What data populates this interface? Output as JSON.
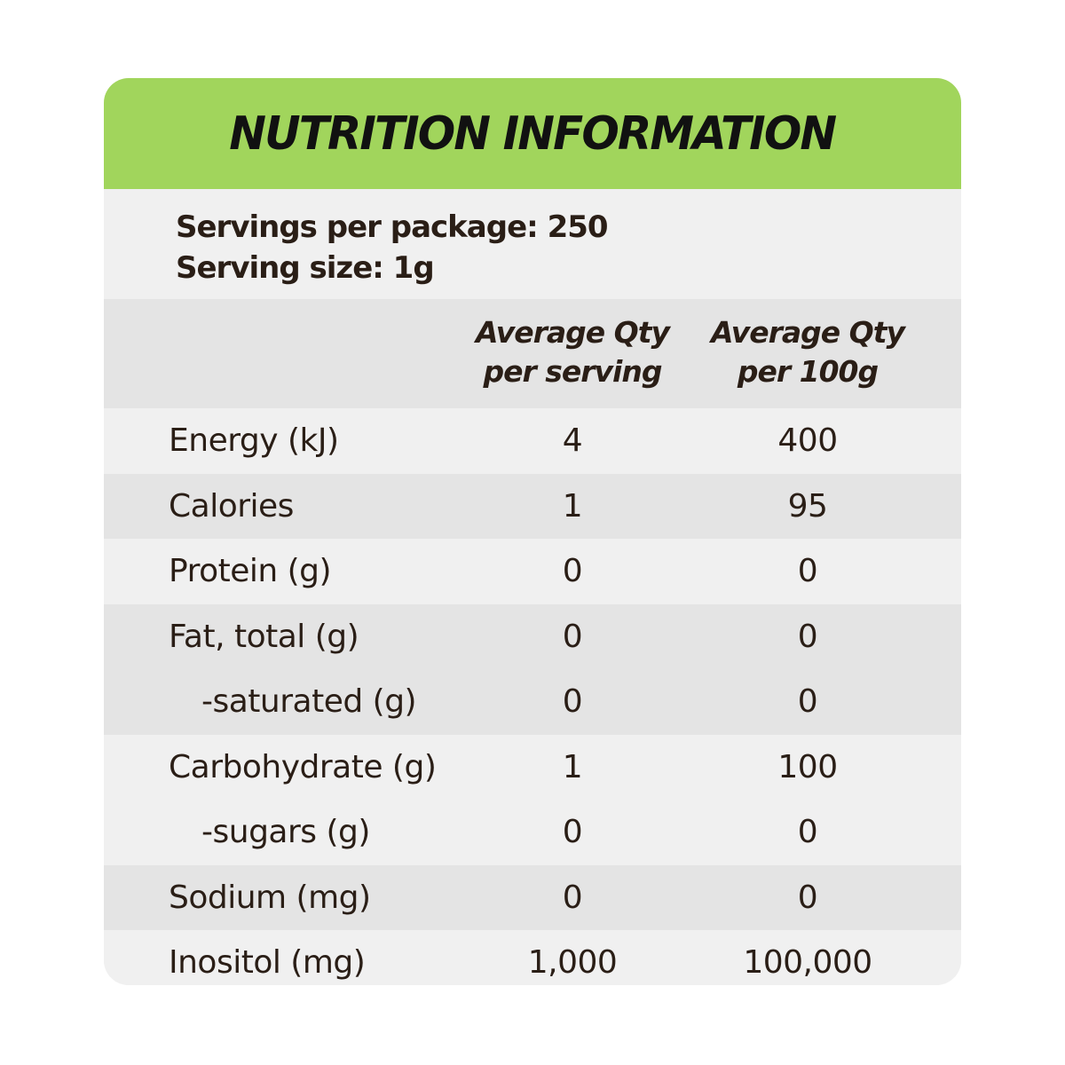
{
  "title": "NUTRITION INFORMATION",
  "servings_per_package": "Servings per package: 250",
  "serving_size": "Serving size: 1g",
  "columns": {
    "per_serving": [
      "Average Qty",
      "per serving"
    ],
    "per_100g": [
      "Average Qty",
      "per 100g"
    ]
  },
  "rows": [
    {
      "label": "Energy (kJ)",
      "per_serving": "4",
      "per_100g": "400"
    },
    {
      "label": "Calories",
      "per_serving": "1",
      "per_100g": "95"
    },
    {
      "label": "Protein (g)",
      "per_serving": "0",
      "per_100g": "0"
    },
    {
      "label": "Fat, total (g)",
      "per_serving": "0",
      "per_100g": "0"
    },
    {
      "label": "-saturated (g)",
      "per_serving": "0",
      "per_100g": "0"
    },
    {
      "label": "Carbohydrate (g)",
      "per_serving": "1",
      "per_100g": "100"
    },
    {
      "label": "-sugars (g)",
      "per_serving": "0",
      "per_100g": "0"
    },
    {
      "label": "Sodium (mg)",
      "per_serving": "0",
      "per_100g": "0"
    },
    {
      "label": "Inositol (mg)",
      "per_serving": "1,000",
      "per_100g": "100,000"
    }
  ],
  "colors": {
    "title_bar": "#a1d55c",
    "row_light": "#f0f0f0",
    "row_dark": "#e4e4e4",
    "text": "#2a1e16"
  }
}
